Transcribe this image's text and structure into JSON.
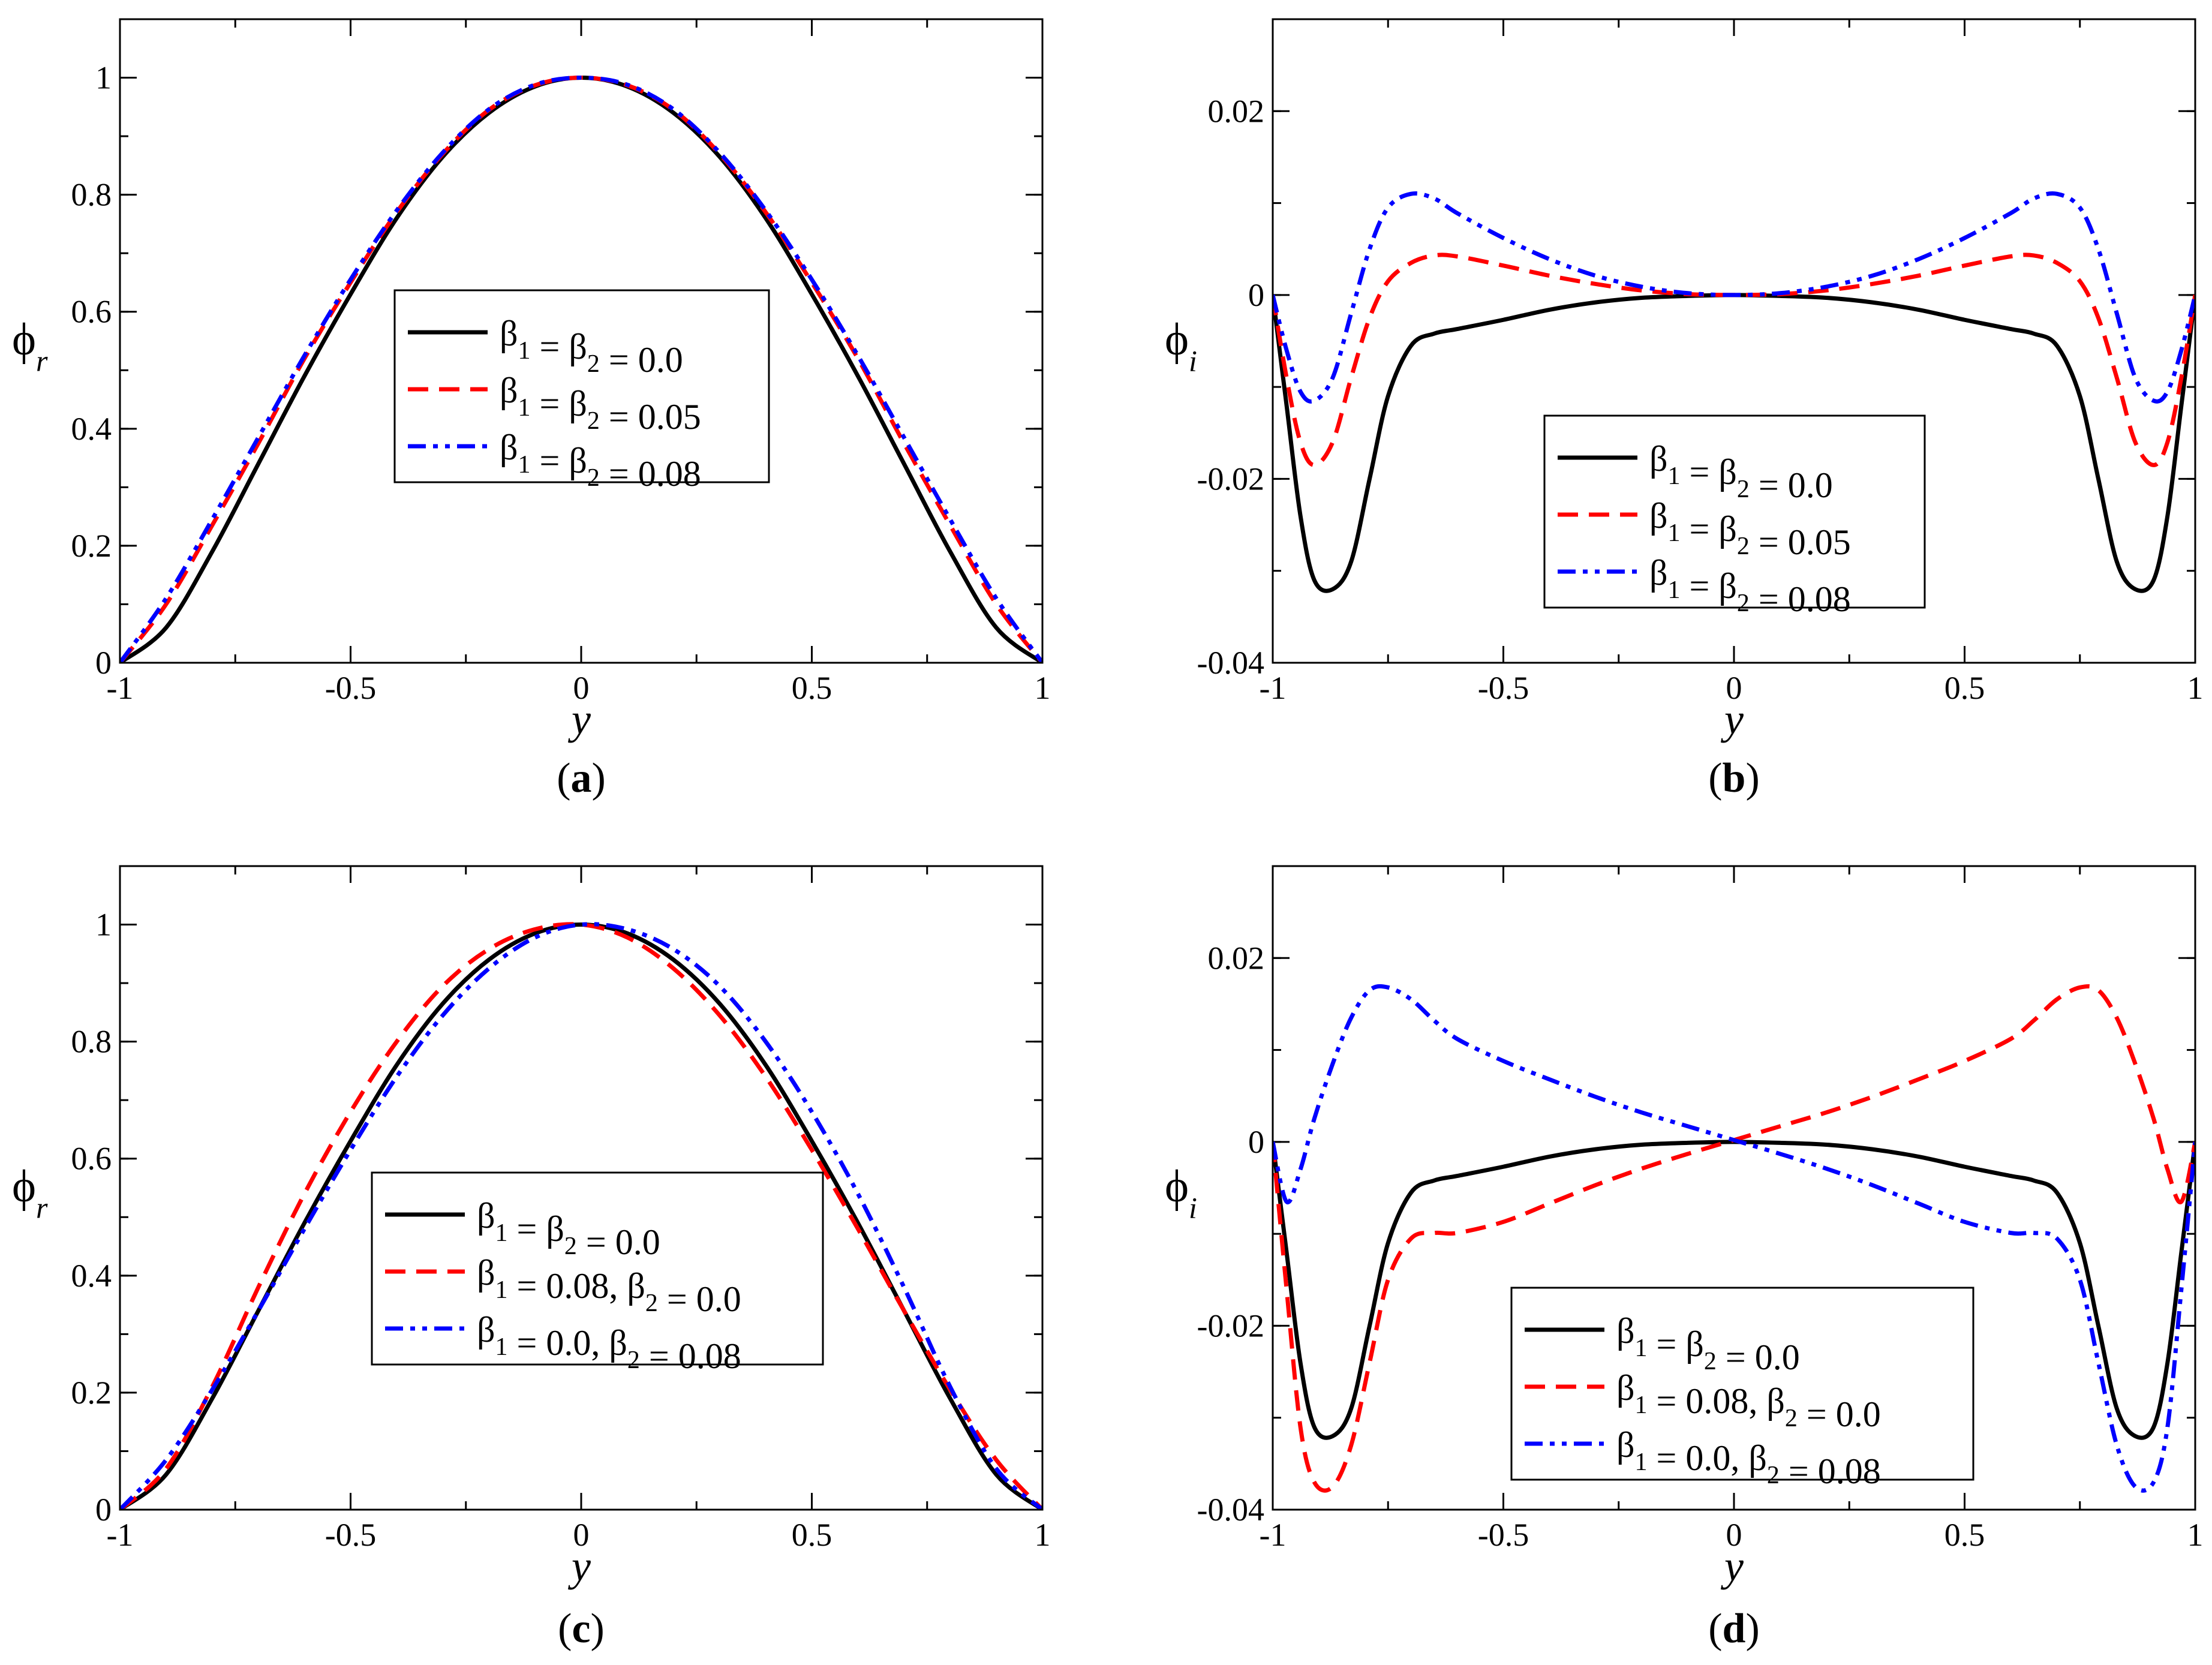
{
  "chart_data": [
    {
      "panel": "a",
      "caption": "a",
      "type": "line",
      "xlabel": "y",
      "ylabel": {
        "base": "ϕ",
        "sub": "r"
      },
      "xlim": [
        -1,
        1
      ],
      "ylim": [
        0,
        1.1
      ],
      "xticks": [
        -1,
        -0.5,
        0,
        0.5,
        1
      ],
      "xtick_labels": [
        "-1",
        "-0.5",
        "0",
        "0.5",
        "1"
      ],
      "yticks": [
        0,
        0.2,
        0.4,
        0.6,
        0.8,
        1
      ],
      "ytick_labels": [
        "0",
        "0.2",
        "0.4",
        "0.6",
        "0.8",
        "1"
      ],
      "legend_position": "center",
      "series": [
        {
          "name": "β1 = β2 = 0.0",
          "legend": [
            [
              "β",
              "1"
            ],
            [
              " = β",
              "2"
            ],
            [
              " = 0.0",
              ""
            ]
          ],
          "color": "#000000",
          "dash": "solid",
          "x": [
            -1,
            -0.9,
            -0.8,
            -0.7,
            -0.6,
            -0.5,
            -0.4,
            -0.3,
            -0.2,
            -0.1,
            0,
            0.1,
            0.2,
            0.3,
            0.4,
            0.5,
            0.6,
            0.7,
            0.8,
            0.9,
            1
          ],
          "y": [
            0,
            0.06,
            0.19,
            0.34,
            0.49,
            0.63,
            0.76,
            0.865,
            0.94,
            0.985,
            1,
            0.985,
            0.94,
            0.865,
            0.76,
            0.63,
            0.49,
            0.34,
            0.19,
            0.06,
            0
          ]
        },
        {
          "name": "β1 = β2 = 0.05",
          "legend": [
            [
              "β",
              "1"
            ],
            [
              " = β",
              "2"
            ],
            [
              " = 0.05",
              ""
            ]
          ],
          "color": "#ff0000",
          "dash": "dashed",
          "x": [
            -1,
            -0.9,
            -0.8,
            -0.7,
            -0.6,
            -0.5,
            -0.4,
            -0.3,
            -0.2,
            -0.1,
            0,
            0.1,
            0.2,
            0.3,
            0.4,
            0.5,
            0.6,
            0.7,
            0.8,
            0.9,
            1
          ],
          "y": [
            0,
            0.1,
            0.235,
            0.375,
            0.52,
            0.65,
            0.77,
            0.87,
            0.945,
            0.987,
            1,
            0.987,
            0.945,
            0.87,
            0.77,
            0.65,
            0.52,
            0.375,
            0.235,
            0.1,
            0
          ]
        },
        {
          "name": "β1 = β2 = 0.08",
          "legend": [
            [
              "β",
              "1"
            ],
            [
              " = β",
              "2"
            ],
            [
              " = 0.08",
              ""
            ]
          ],
          "color": "#0000ff",
          "dash": "dashdotdot",
          "x": [
            -1,
            -0.9,
            -0.8,
            -0.7,
            -0.6,
            -0.5,
            -0.4,
            -0.3,
            -0.2,
            -0.1,
            0,
            0.1,
            0.2,
            0.3,
            0.4,
            0.5,
            0.6,
            0.7,
            0.8,
            0.9,
            1
          ],
          "y": [
            0,
            0.11,
            0.245,
            0.385,
            0.525,
            0.655,
            0.773,
            0.872,
            0.946,
            0.988,
            1,
            0.988,
            0.946,
            0.872,
            0.773,
            0.655,
            0.525,
            0.385,
            0.245,
            0.11,
            0
          ]
        }
      ]
    },
    {
      "panel": "b",
      "caption": "b",
      "type": "line",
      "xlabel": "y",
      "ylabel": {
        "base": "ϕ",
        "sub": "i"
      },
      "xlim": [
        -1,
        1
      ],
      "ylim": [
        -0.04,
        0.03
      ],
      "xticks": [
        -1,
        -0.5,
        0,
        0.5,
        1
      ],
      "xtick_labels": [
        "-1",
        "-0.5",
        "0",
        "0.5",
        "1"
      ],
      "yticks": [
        -0.04,
        -0.02,
        0,
        0.02
      ],
      "ytick_labels": [
        "-0.04",
        "-0.02",
        "0",
        "0.02"
      ],
      "legend_position": "lower-center",
      "series": [
        {
          "name": "β1 = β2 = 0.0",
          "legend": [
            [
              "β",
              "1"
            ],
            [
              " = β",
              "2"
            ],
            [
              " = 0.0",
              ""
            ]
          ],
          "color": "#000000",
          "dash": "solid",
          "x": [
            -1,
            -0.97,
            -0.94,
            -0.91,
            -0.87,
            -0.83,
            -0.79,
            -0.75,
            -0.7,
            -0.65,
            -0.6,
            -0.5,
            -0.4,
            -0.3,
            -0.2,
            -0.1,
            0,
            0.1,
            0.2,
            0.3,
            0.4,
            0.5,
            0.6,
            0.65,
            0.7,
            0.75,
            0.79,
            0.83,
            0.87,
            0.91,
            0.94,
            0.97,
            1
          ],
          "y": [
            0,
            -0.012,
            -0.024,
            -0.031,
            -0.032,
            -0.029,
            -0.02,
            -0.011,
            -0.0055,
            -0.0042,
            -0.0037,
            -0.0027,
            -0.0016,
            -0.0008,
            -0.0003,
            -0.0001,
            0,
            -0.0001,
            -0.0003,
            -0.0008,
            -0.0016,
            -0.0027,
            -0.0037,
            -0.0042,
            -0.0055,
            -0.011,
            -0.02,
            -0.029,
            -0.032,
            -0.031,
            -0.024,
            -0.012,
            0
          ]
        },
        {
          "name": "β1 = β2 = 0.05",
          "legend": [
            [
              "β",
              "1"
            ],
            [
              " = β",
              "2"
            ],
            [
              " = 0.05",
              ""
            ]
          ],
          "color": "#ff0000",
          "dash": "dashed",
          "x": [
            -1,
            -0.97,
            -0.94,
            -0.91,
            -0.87,
            -0.83,
            -0.79,
            -0.75,
            -0.7,
            -0.65,
            -0.6,
            -0.5,
            -0.4,
            -0.3,
            -0.2,
            -0.1,
            0,
            0.1,
            0.2,
            0.3,
            0.4,
            0.5,
            0.6,
            0.65,
            0.7,
            0.75,
            0.79,
            0.83,
            0.87,
            0.91,
            0.94,
            0.97,
            1
          ],
          "y": [
            0,
            -0.009,
            -0.016,
            -0.0185,
            -0.016,
            -0.009,
            -0.0025,
            0.0015,
            0.0035,
            0.0043,
            0.0042,
            0.0032,
            0.0021,
            0.0012,
            0.0005,
            0.0001,
            0,
            0.0001,
            0.0005,
            0.0012,
            0.0021,
            0.0032,
            0.0042,
            0.0043,
            0.0035,
            0.0015,
            -0.0025,
            -0.009,
            -0.016,
            -0.0185,
            -0.016,
            -0.009,
            0
          ]
        },
        {
          "name": "β1 = β2 = 0.08",
          "legend": [
            [
              "β",
              "1"
            ],
            [
              " = β",
              "2"
            ],
            [
              " = 0.08",
              ""
            ]
          ],
          "color": "#0000ff",
          "dash": "dashdotdot",
          "x": [
            -1,
            -0.97,
            -0.94,
            -0.91,
            -0.87,
            -0.83,
            -0.79,
            -0.75,
            -0.7,
            -0.65,
            -0.6,
            -0.5,
            -0.4,
            -0.3,
            -0.2,
            -0.1,
            0,
            0.1,
            0.2,
            0.3,
            0.4,
            0.5,
            0.6,
            0.65,
            0.7,
            0.75,
            0.79,
            0.83,
            0.87,
            0.91,
            0.94,
            0.97,
            1
          ],
          "y": [
            0,
            -0.006,
            -0.0105,
            -0.0115,
            -0.009,
            -0.002,
            0.005,
            0.0095,
            0.011,
            0.0105,
            0.0089,
            0.0062,
            0.0039,
            0.0021,
            0.0009,
            0.0002,
            0,
            0.0002,
            0.0009,
            0.0021,
            0.0039,
            0.0062,
            0.0089,
            0.0105,
            0.011,
            0.0095,
            0.005,
            -0.002,
            -0.009,
            -0.0115,
            -0.0105,
            -0.006,
            0
          ]
        }
      ]
    },
    {
      "panel": "c",
      "caption": "c",
      "type": "line",
      "xlabel": "y",
      "ylabel": {
        "base": "ϕ",
        "sub": "r"
      },
      "xlim": [
        -1,
        1
      ],
      "ylim": [
        0,
        1.1
      ],
      "xticks": [
        -1,
        -0.5,
        0,
        0.5,
        1
      ],
      "xtick_labels": [
        "-1",
        "-0.5",
        "0",
        "0.5",
        "1"
      ],
      "yticks": [
        0,
        0.2,
        0.4,
        0.6,
        0.8,
        1
      ],
      "ytick_labels": [
        "0",
        "0.2",
        "0.4",
        "0.6",
        "0.8",
        "1"
      ],
      "legend_position": "center",
      "series": [
        {
          "name": "β1 = β2 = 0.0",
          "legend": [
            [
              "β",
              "1"
            ],
            [
              " = β",
              "2"
            ],
            [
              " = 0.0",
              ""
            ]
          ],
          "color": "#000000",
          "dash": "solid",
          "x": [
            -1,
            -0.9,
            -0.8,
            -0.7,
            -0.6,
            -0.5,
            -0.4,
            -0.3,
            -0.2,
            -0.1,
            0,
            0.1,
            0.2,
            0.3,
            0.4,
            0.5,
            0.6,
            0.7,
            0.8,
            0.9,
            1
          ],
          "y": [
            0,
            0.06,
            0.19,
            0.34,
            0.49,
            0.63,
            0.76,
            0.865,
            0.94,
            0.985,
            1,
            0.985,
            0.94,
            0.865,
            0.76,
            0.63,
            0.49,
            0.34,
            0.19,
            0.06,
            0
          ]
        },
        {
          "name": "β1 = 0.08, β2 = 0.0",
          "legend": [
            [
              "β",
              "1"
            ],
            [
              " = 0.08, β",
              "2"
            ],
            [
              " = 0.0",
              ""
            ]
          ],
          "color": "#ff0000",
          "dash": "dashed",
          "x": [
            -1,
            -0.9,
            -0.8,
            -0.7,
            -0.6,
            -0.5,
            -0.4,
            -0.3,
            -0.2,
            -0.1,
            0,
            0.1,
            0.2,
            0.3,
            0.4,
            0.5,
            0.6,
            0.7,
            0.8,
            0.9,
            1
          ],
          "y": [
            0,
            0.07,
            0.21,
            0.38,
            0.54,
            0.68,
            0.8,
            0.895,
            0.958,
            0.992,
            1,
            0.978,
            0.925,
            0.845,
            0.74,
            0.615,
            0.48,
            0.34,
            0.205,
            0.085,
            0
          ]
        },
        {
          "name": "β1 = 0.0, β2 = 0.08",
          "legend": [
            [
              "β",
              "1"
            ],
            [
              " = 0.0, β",
              "2"
            ],
            [
              " = 0.08",
              ""
            ]
          ],
          "color": "#0000ff",
          "dash": "dashdotdot",
          "x": [
            -1,
            -0.9,
            -0.8,
            -0.7,
            -0.6,
            -0.5,
            -0.4,
            -0.3,
            -0.2,
            -0.1,
            0,
            0.1,
            0.2,
            0.3,
            0.4,
            0.5,
            0.6,
            0.7,
            0.8,
            0.9,
            1
          ],
          "y": [
            0,
            0.085,
            0.205,
            0.34,
            0.48,
            0.615,
            0.74,
            0.845,
            0.925,
            0.978,
            1,
            0.992,
            0.958,
            0.895,
            0.8,
            0.68,
            0.54,
            0.38,
            0.21,
            0.07,
            0
          ]
        }
      ]
    },
    {
      "panel": "d",
      "caption": "d",
      "type": "line",
      "xlabel": "y",
      "ylabel": {
        "base": "ϕ",
        "sub": "i"
      },
      "xlim": [
        -1,
        1
      ],
      "ylim": [
        -0.04,
        0.03
      ],
      "xticks": [
        -1,
        -0.5,
        0,
        0.5,
        1
      ],
      "xtick_labels": [
        "-1",
        "-0.5",
        "0",
        "0.5",
        "1"
      ],
      "yticks": [
        -0.04,
        -0.02,
        0,
        0.02
      ],
      "ytick_labels": [
        "-0.04",
        "-0.02",
        "0",
        "0.02"
      ],
      "legend_position": "lower-center",
      "series": [
        {
          "name": "β1 = β2 = 0.0",
          "legend": [
            [
              "β",
              "1"
            ],
            [
              " = β",
              "2"
            ],
            [
              " = 0.0",
              ""
            ]
          ],
          "color": "#000000",
          "dash": "solid",
          "x": [
            -1,
            -0.97,
            -0.94,
            -0.91,
            -0.87,
            -0.83,
            -0.79,
            -0.75,
            -0.7,
            -0.65,
            -0.6,
            -0.5,
            -0.4,
            -0.3,
            -0.2,
            -0.1,
            0,
            0.1,
            0.2,
            0.3,
            0.4,
            0.5,
            0.6,
            0.65,
            0.7,
            0.75,
            0.79,
            0.83,
            0.87,
            0.91,
            0.94,
            0.97,
            1
          ],
          "y": [
            0,
            -0.012,
            -0.024,
            -0.031,
            -0.032,
            -0.029,
            -0.02,
            -0.011,
            -0.0055,
            -0.0042,
            -0.0037,
            -0.0027,
            -0.0016,
            -0.0008,
            -0.0003,
            -0.0001,
            0,
            -0.0001,
            -0.0003,
            -0.0008,
            -0.0016,
            -0.0027,
            -0.0037,
            -0.0042,
            -0.0055,
            -0.011,
            -0.02,
            -0.029,
            -0.032,
            -0.031,
            -0.024,
            -0.012,
            0
          ]
        },
        {
          "name": "β1 = 0.08, β2 = 0.0",
          "legend": [
            [
              "β",
              "1"
            ],
            [
              " = 0.08, β",
              "2"
            ],
            [
              " = 0.0",
              ""
            ]
          ],
          "color": "#ff0000",
          "dash": "dashed",
          "x": [
            -1,
            -0.97,
            -0.94,
            -0.91,
            -0.87,
            -0.83,
            -0.79,
            -0.75,
            -0.7,
            -0.65,
            -0.6,
            -0.5,
            -0.4,
            -0.3,
            -0.2,
            -0.1,
            0,
            0.1,
            0.2,
            0.3,
            0.4,
            0.5,
            0.6,
            0.65,
            0.7,
            0.75,
            0.79,
            0.83,
            0.87,
            0.91,
            0.94,
            0.97,
            1
          ],
          "y": [
            0,
            -0.016,
            -0.031,
            -0.037,
            -0.0375,
            -0.033,
            -0.024,
            -0.015,
            -0.0105,
            -0.0099,
            -0.0099,
            -0.0087,
            -0.0067,
            -0.0047,
            -0.0029,
            -0.0013,
            0.0002,
            0.0017,
            0.0032,
            0.0049,
            0.0068,
            0.0088,
            0.0112,
            0.0132,
            0.0155,
            0.0168,
            0.0165,
            0.0135,
            0.0085,
            0.0025,
            -0.003,
            -0.0065,
            0
          ]
        },
        {
          "name": "β1 = 0.0, β2 = 0.08",
          "legend": [
            [
              "β",
              "1"
            ],
            [
              " = 0.0, β",
              "2"
            ],
            [
              " = 0.08",
              ""
            ]
          ],
          "color": "#0000ff",
          "dash": "dashdotdot",
          "x": [
            -1,
            -0.97,
            -0.94,
            -0.91,
            -0.87,
            -0.83,
            -0.79,
            -0.75,
            -0.7,
            -0.65,
            -0.6,
            -0.5,
            -0.4,
            -0.3,
            -0.2,
            -0.1,
            0,
            0.1,
            0.2,
            0.3,
            0.4,
            0.5,
            0.6,
            0.65,
            0.7,
            0.75,
            0.79,
            0.83,
            0.87,
            0.91,
            0.94,
            0.97,
            1
          ],
          "y": [
            0,
            -0.0065,
            -0.003,
            0.0025,
            0.0085,
            0.0135,
            0.0165,
            0.0168,
            0.0155,
            0.0132,
            0.0112,
            0.0088,
            0.0068,
            0.0049,
            0.0032,
            0.0017,
            0.0002,
            -0.0013,
            -0.0029,
            -0.0047,
            -0.0067,
            -0.0087,
            -0.0099,
            -0.0099,
            -0.0105,
            -0.015,
            -0.024,
            -0.033,
            -0.0375,
            -0.037,
            -0.031,
            -0.016,
            0
          ]
        }
      ]
    }
  ]
}
